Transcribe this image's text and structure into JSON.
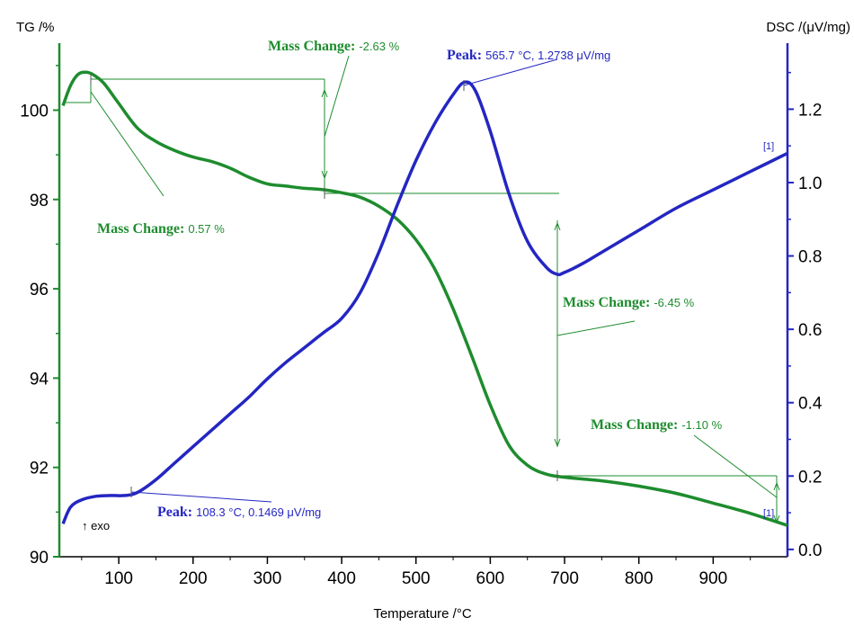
{
  "colors": {
    "tg": "#1e8c2e",
    "dsc": "#2426c2",
    "axis_left": "#1e8c2e",
    "axis_right": "#2426c2",
    "text": "#000000"
  },
  "chart_data": {
    "type": "line",
    "xlabel": "Temperature /°C",
    "ylabel_left": "TG /%",
    "ylabel_right": "DSC /(μV/mg)",
    "xlim": [
      20,
      1000
    ],
    "ylim_left": [
      90,
      101.5
    ],
    "ylim_right": [
      -0.02,
      1.38
    ],
    "x_ticks": [
      100,
      200,
      300,
      400,
      500,
      600,
      700,
      800,
      900
    ],
    "y_left_ticks": [
      90,
      92,
      94,
      96,
      98,
      100
    ],
    "y_right_ticks": [
      0.0,
      0.2,
      0.4,
      0.6,
      0.8,
      1.0,
      1.2
    ],
    "y_right_tick_labels": [
      "0.0",
      "0.2",
      "0.4",
      "0.6",
      "0.8",
      "1.0",
      "1.2"
    ],
    "grid": false,
    "series": [
      {
        "name": "TG",
        "axis": "left",
        "x": [
          25,
          35,
          45,
          55,
          65,
          80,
          100,
          125,
          150,
          175,
          200,
          225,
          250,
          275,
          300,
          325,
          350,
          375,
          400,
          425,
          450,
          475,
          500,
          525,
          550,
          575,
          600,
          625,
          650,
          675,
          700,
          750,
          800,
          850,
          900,
          950,
          1000
        ],
        "values": [
          100.1,
          100.55,
          100.8,
          100.85,
          100.8,
          100.6,
          100.15,
          99.6,
          99.3,
          99.1,
          98.95,
          98.85,
          98.7,
          98.5,
          98.35,
          98.3,
          98.25,
          98.22,
          98.15,
          98.05,
          97.85,
          97.55,
          97.1,
          96.45,
          95.55,
          94.5,
          93.4,
          92.5,
          92.05,
          91.85,
          91.78,
          91.7,
          91.58,
          91.42,
          91.2,
          90.97,
          90.7
        ]
      },
      {
        "name": "DSC",
        "axis": "right",
        "x": [
          25,
          35,
          50,
          70,
          90,
          108,
          125,
          150,
          175,
          200,
          225,
          250,
          275,
          300,
          325,
          350,
          375,
          400,
          425,
          450,
          475,
          500,
          525,
          550,
          565.7,
          580,
          600,
          625,
          650,
          675,
          690,
          700,
          725,
          750,
          800,
          850,
          900,
          950,
          1000
        ],
        "values": [
          0.07,
          0.115,
          0.135,
          0.145,
          0.147,
          0.1469,
          0.155,
          0.19,
          0.235,
          0.28,
          0.325,
          0.37,
          0.415,
          0.465,
          0.51,
          0.55,
          0.59,
          0.63,
          0.7,
          0.81,
          0.94,
          1.06,
          1.16,
          1.24,
          1.2738,
          1.25,
          1.14,
          0.97,
          0.84,
          0.77,
          0.75,
          0.755,
          0.78,
          0.81,
          0.87,
          0.93,
          0.98,
          1.03,
          1.08
        ]
      }
    ],
    "annotations": {
      "mass_changes": [
        {
          "label": "Mass Change:",
          "value": "0.57 %"
        },
        {
          "label": "Mass Change:",
          "value": "-2.63 %"
        },
        {
          "label": "Mass Change:",
          "value": "-6.45 %"
        },
        {
          "label": "Mass Change:",
          "value": "-1.10 %"
        }
      ],
      "peaks": [
        {
          "label": "Peak:",
          "value": "108.3 °C, 0.1469 μV/mg"
        },
        {
          "label": "Peak:",
          "value": "565.7 °C, 1.2738 μV/mg"
        }
      ],
      "exo": "↑ exo",
      "series_tags": [
        "[1]",
        "[1]"
      ]
    }
  }
}
